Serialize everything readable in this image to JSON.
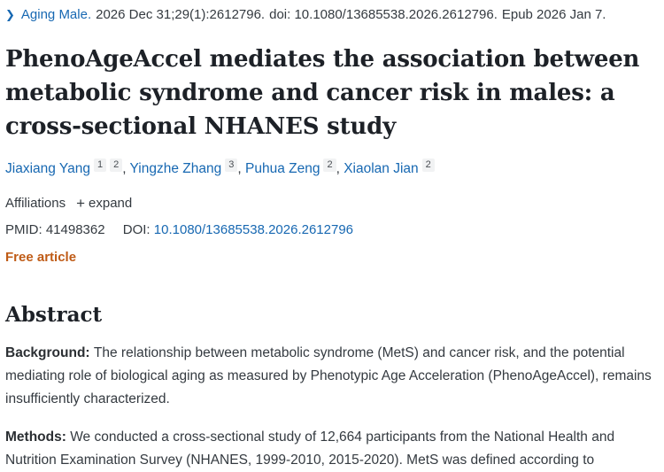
{
  "header": {
    "chevron_icon": "❯",
    "journal_link": "Aging Male.",
    "citation": "2026 Dec 31;29(1):2612796.",
    "doi_text": "doi: 10.1080/13685538.2026.2612796.",
    "epub_text": "Epub 2026 Jan 7."
  },
  "title": "PhenoAgeAccel mediates the association between metabolic syndrome and cancer risk in males: a cross-sectional NHANES study",
  "authors": [
    {
      "name": "Jiaxiang Yang",
      "sups": [
        "1",
        "2"
      ]
    },
    {
      "name": "Yingzhe Zhang",
      "sups": [
        "3"
      ]
    },
    {
      "name": "Puhua Zeng",
      "sups": [
        "2"
      ]
    },
    {
      "name": "Xiaolan Jian",
      "sups": [
        "2"
      ]
    }
  ],
  "affiliations": {
    "label": "Affiliations",
    "plus_icon": "+",
    "expand_label": "expand"
  },
  "identifiers": {
    "pmid_label": "PMID:",
    "pmid": "41498362",
    "doi_label": "DOI:",
    "doi": "10.1080/13685538.2026.2612796"
  },
  "free_article": "Free article",
  "abstract": {
    "heading": "Abstract",
    "paragraphs": [
      {
        "label": "Background:",
        "text": "The relationship between metabolic syndrome (MetS) and cancer risk, and the potential mediating role of biological aging as measured by Phenotypic Age Acceleration (PhenoAgeAccel), remains insufficiently characterized."
      },
      {
        "label": "Methods:",
        "text": "We conducted a cross-sectional study of 12,664 participants from the National Health and Nutrition Examination Survey (NHANES, 1999-2010, 2015-2020). MetS was defined according to"
      }
    ]
  },
  "colors": {
    "link_blue": "#1768b2",
    "free_article_orange": "#bf5b16",
    "heading_dark": "#1d2127"
  }
}
